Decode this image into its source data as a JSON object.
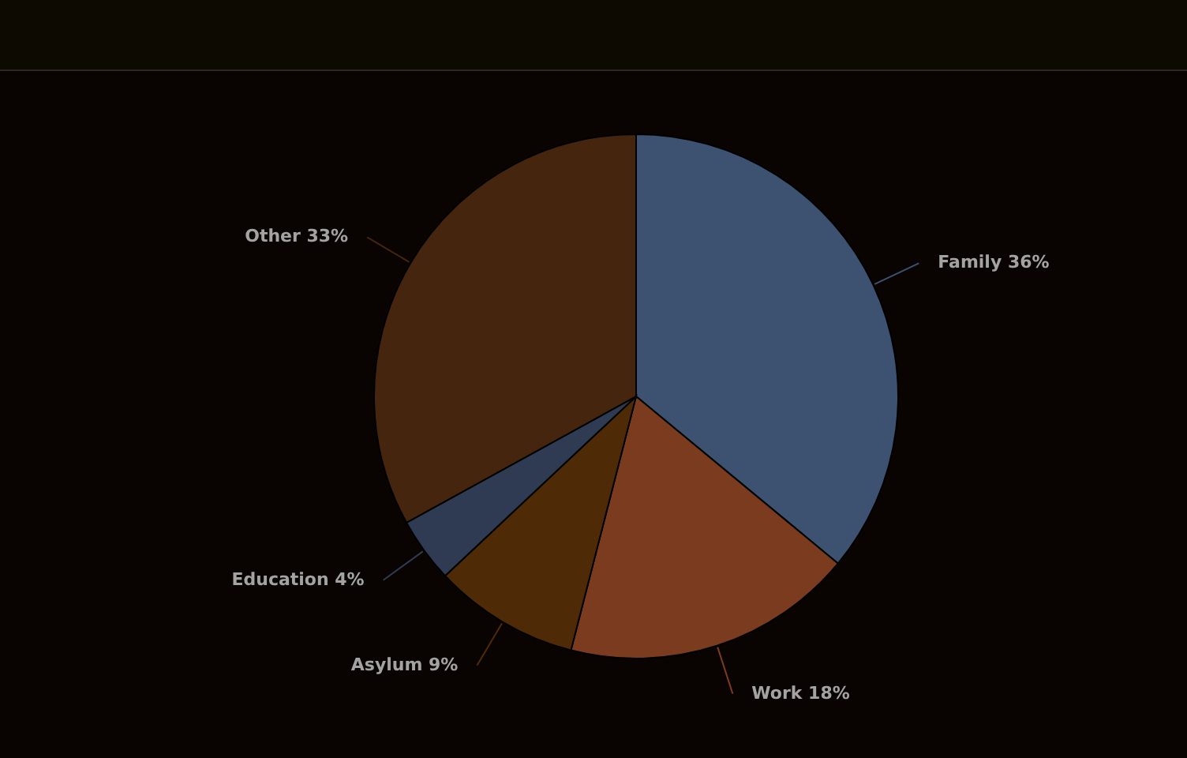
{
  "chart_data": {
    "type": "pie",
    "categories": [
      "Family",
      "Work",
      "Asylum",
      "Education",
      "Other"
    ],
    "values": [
      36,
      18,
      9,
      4,
      33
    ],
    "value_labels": [
      "36%",
      "18%",
      "9%",
      "4%",
      "33%"
    ],
    "colors": [
      "#3d5170",
      "#7a3b1e",
      "#4f2a06",
      "#2f3b52",
      "#45250e"
    ]
  }
}
